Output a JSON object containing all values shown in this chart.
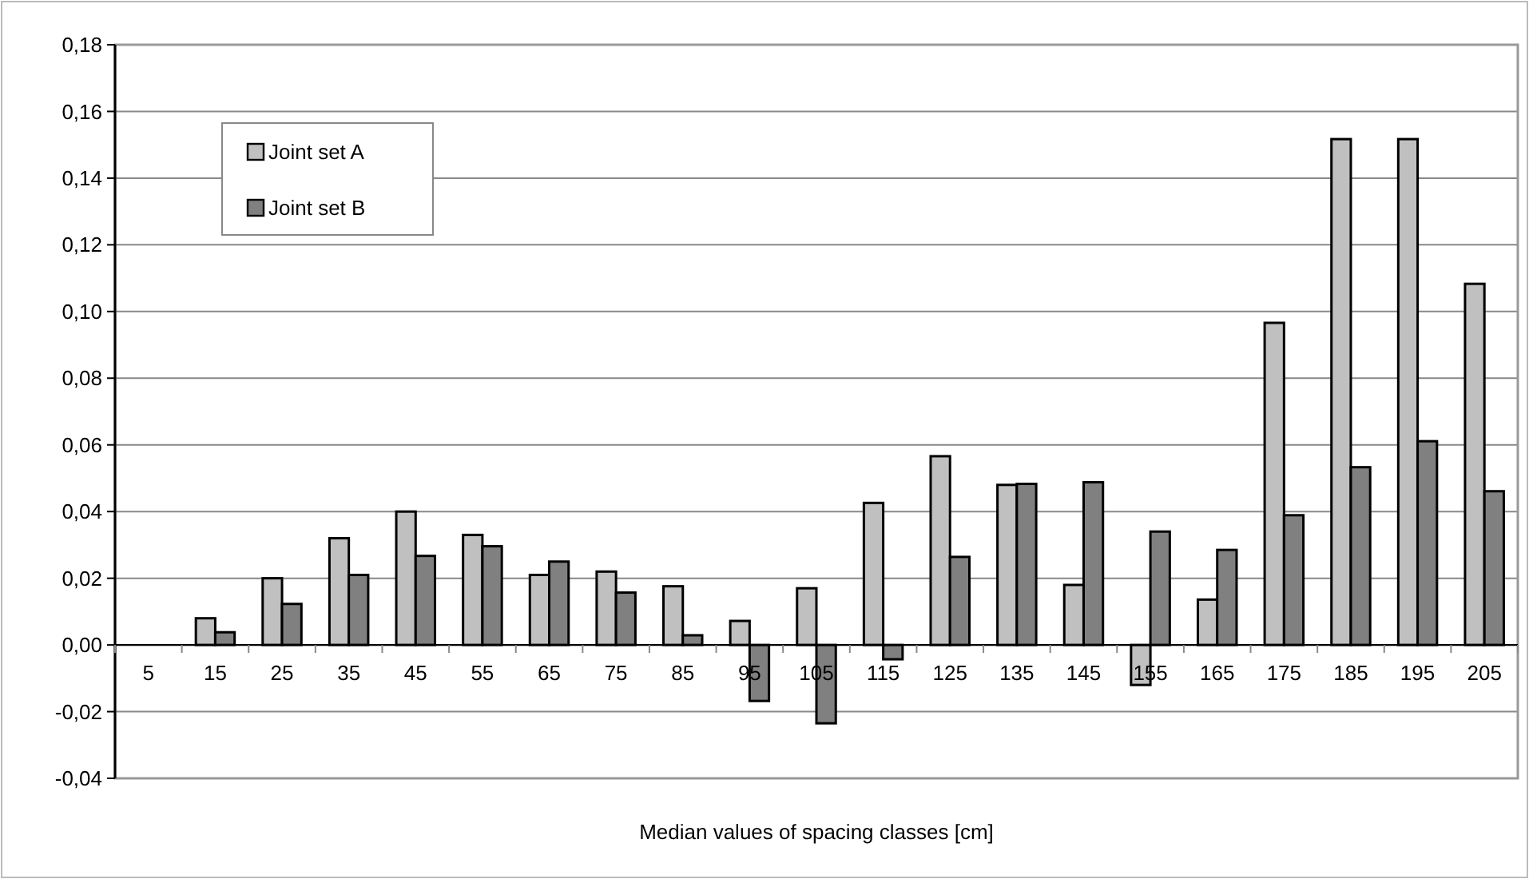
{
  "chart_data": {
    "type": "bar",
    "xlabel": "Median values of spacing classes [cm]",
    "categories": [
      "5",
      "15",
      "25",
      "35",
      "45",
      "55",
      "65",
      "75",
      "85",
      "95",
      "105",
      "115",
      "125",
      "135",
      "145",
      "155",
      "165",
      "175",
      "185",
      "195",
      "205"
    ],
    "series": [
      {
        "name": "Joint set A",
        "color": "#c0c0c0",
        "values": [
          0,
          0.008,
          0.02,
          0.032,
          0.04,
          0.033,
          0.021,
          0.022,
          0.0176,
          0.0072,
          0.017,
          0.0426,
          0.0566,
          0.048,
          0.018,
          -0.012,
          0.0136,
          0.0966,
          0.1517,
          0.1517,
          0.1083
        ]
      },
      {
        "name": "Joint set B",
        "color": "#808080",
        "values": [
          0,
          0.0038,
          0.0123,
          0.021,
          0.0267,
          0.0296,
          0.025,
          0.0157,
          0.0029,
          -0.0168,
          -0.0235,
          -0.0043,
          0.0264,
          0.0483,
          0.0488,
          0.034,
          0.0285,
          0.0389,
          0.0533,
          0.0611,
          0.0461
        ]
      }
    ],
    "ylim": [
      -0.04,
      0.18
    ],
    "yticks": [
      {
        "value": -0.04,
        "label": "-0,04"
      },
      {
        "value": -0.02,
        "label": "-0,02"
      },
      {
        "value": 0,
        "label": "0,00"
      },
      {
        "value": 0.02,
        "label": "0,02"
      },
      {
        "value": 0.04,
        "label": "0,04"
      },
      {
        "value": 0.06,
        "label": "0,06"
      },
      {
        "value": 0.08,
        "label": "0,08"
      },
      {
        "value": 0.1,
        "label": "0,10"
      },
      {
        "value": 0.12,
        "label": "0,12"
      },
      {
        "value": 0.14,
        "label": "0,14"
      },
      {
        "value": 0.16,
        "label": "0,16"
      },
      {
        "value": 0.18,
        "label": "0,18"
      }
    ],
    "grid": "y",
    "legend": "top left"
  }
}
